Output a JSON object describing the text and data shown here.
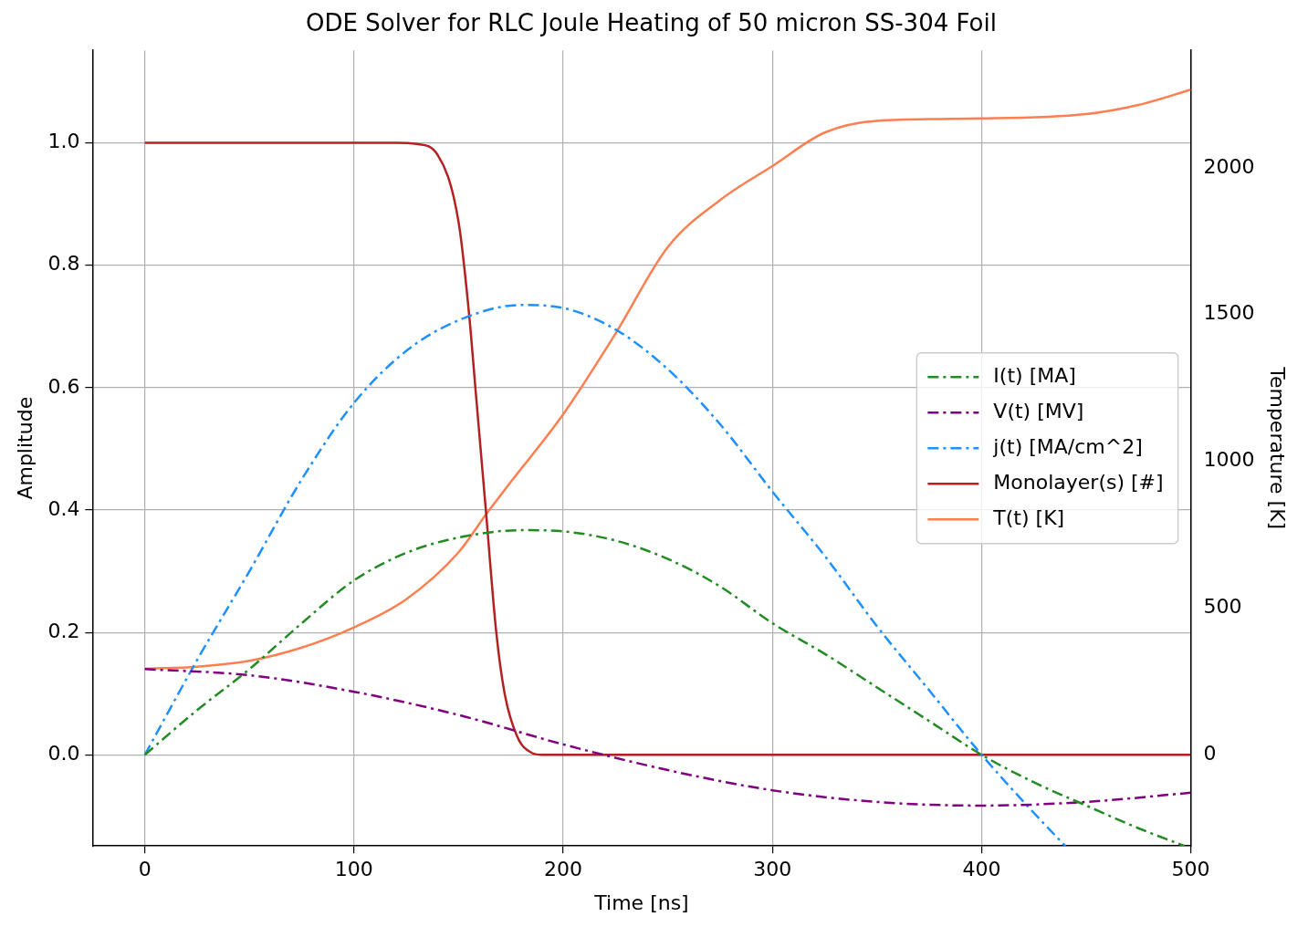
{
  "chart_data": {
    "type": "line",
    "title": "ODE Solver for RLC Joule Heating of 50 micron SS-304 Foil",
    "xlabel": "Time [ns]",
    "ylabel": "Amplitude",
    "y2label": "Temperature [K]",
    "xlim": [
      -25,
      500
    ],
    "xticks": [
      0,
      100,
      200,
      300,
      400,
      500
    ],
    "ylim": [
      -0.149,
      1.151
    ],
    "yticks": [
      {
        "value": 0,
        "label": "0.0"
      },
      0.2,
      0.4,
      0.6,
      0.8,
      {
        "value": 1,
        "label": "1.0"
      }
    ],
    "y2lim": [
      -311,
      2400
    ],
    "y2ticks": [
      0,
      500,
      1000,
      1500,
      2000
    ],
    "grid": true,
    "legend": "right",
    "marker": "none",
    "series": [
      {
        "name": "I(t) [MA]",
        "color": "#228b22",
        "line_style": "dashdot",
        "x": [
          0,
          25,
          50,
          75,
          100,
          125,
          150,
          180,
          200,
          225,
          250,
          275,
          300,
          325,
          350,
          375,
          400,
          425,
          450,
          475,
          497
        ],
        "values": [
          0,
          0.073,
          0.14,
          0.215,
          0.285,
          0.33,
          0.355,
          0.367,
          0.365,
          0.35,
          0.32,
          0.275,
          0.215,
          0.165,
          0.11,
          0.055,
          0,
          -0.045,
          -0.083,
          -0.12,
          -0.149
        ]
      },
      {
        "name": "V(t) [MV]",
        "color": "#800080",
        "line_style": "dashdot",
        "x": [
          0,
          50,
          100,
          150,
          200,
          250,
          300,
          350,
          400,
          450,
          500
        ],
        "values": [
          0.14,
          0.13,
          0.103,
          0.065,
          0.017,
          -0.025,
          -0.058,
          -0.077,
          -0.083,
          -0.077,
          -0.062
        ]
      },
      {
        "name": "j(t) [MA/cm^2]",
        "color": "#1e90ff",
        "line_style": "dashdot",
        "x": [
          0,
          25,
          50,
          75,
          100,
          125,
          150,
          180,
          200,
          225,
          250,
          275,
          300,
          325,
          350,
          375,
          400,
          425,
          440
        ],
        "values": [
          0,
          0.155,
          0.3,
          0.45,
          0.575,
          0.66,
          0.71,
          0.735,
          0.73,
          0.695,
          0.63,
          0.54,
          0.43,
          0.325,
          0.21,
          0.105,
          0,
          -0.095,
          -0.149
        ]
      },
      {
        "name": "Monolayer(s) [#]",
        "color": "#b22222",
        "line_style": "solid",
        "x": [
          0,
          120,
          130,
          140,
          150,
          155,
          158,
          163,
          168,
          172,
          178,
          185,
          190,
          500
        ],
        "values": [
          1,
          1,
          0.998,
          0.98,
          0.87,
          0.72,
          0.6,
          0.4,
          0.2,
          0.1,
          0.03,
          0.003,
          0,
          0
        ]
      },
      {
        "name": "T(t) [K]",
        "color": "#ff7f50",
        "line_style": "solid",
        "axis": "y2",
        "x": [
          0,
          25,
          50,
          75,
          100,
          125,
          150,
          163,
          175,
          200,
          225,
          250,
          275,
          300,
          325,
          350,
          400,
          450,
          475,
          500
        ],
        "values": [
          293,
          300,
          320,
          365,
          434,
          530,
          690,
          818,
          930,
          1160,
          1435,
          1730,
          1890,
          2006,
          2120,
          2160,
          2168,
          2183,
          2214,
          2266
        ]
      }
    ]
  }
}
